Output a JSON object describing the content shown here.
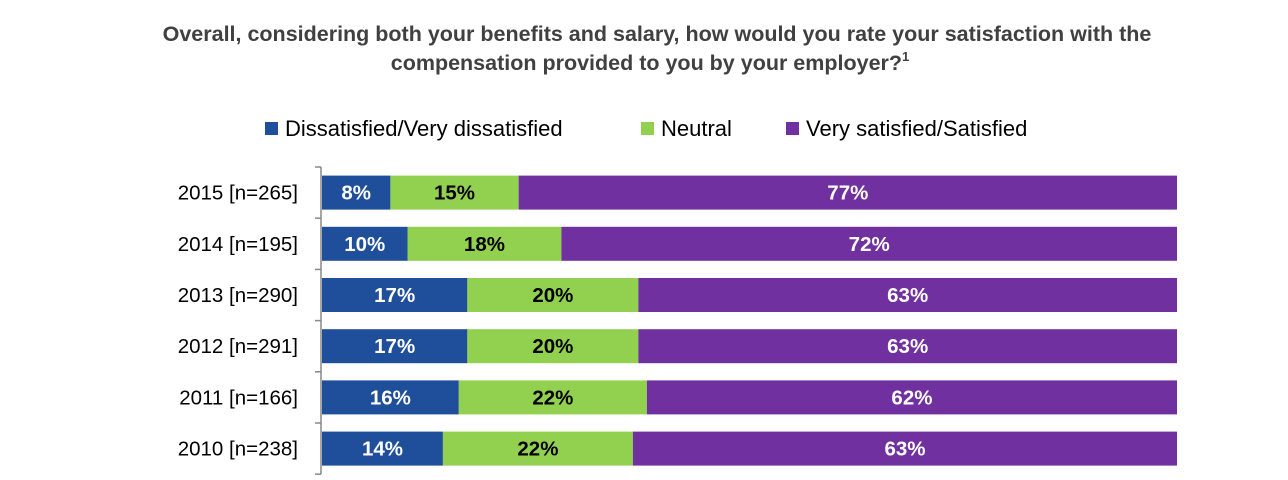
{
  "chart_data": {
    "type": "bar",
    "orientation": "horizontal",
    "stacked": "100%",
    "title_line1": "Overall, considering both your benefits and salary, how would you rate your satisfaction with the",
    "title_line2": "compensation provided to you by your employer?",
    "title_superscript": "1",
    "categories": [
      "2015 [n=265]",
      "2014 [n=195]",
      "2013 [n=290]",
      "2012 [n=291]",
      "2011 [n=166]",
      "2010 [n=238]"
    ],
    "series": [
      {
        "name": "Dissatisfied/Very dissatisfied",
        "color": "#1F4E9B",
        "label_color": "#FFFFFF",
        "values": [
          8,
          10,
          17,
          17,
          16,
          14
        ]
      },
      {
        "name": "Neutral",
        "color": "#92D050",
        "label_color": "#000000",
        "values": [
          15,
          18,
          20,
          20,
          22,
          22
        ]
      },
      {
        "name": "Very satisfied/Satisfied",
        "color": "#7030A0",
        "label_color": "#FFFFFF",
        "values": [
          77,
          72,
          63,
          63,
          62,
          63
        ]
      }
    ],
    "value_suffix": "%",
    "legend_position": "top",
    "grid": false,
    "xlim": [
      0,
      100
    ]
  }
}
